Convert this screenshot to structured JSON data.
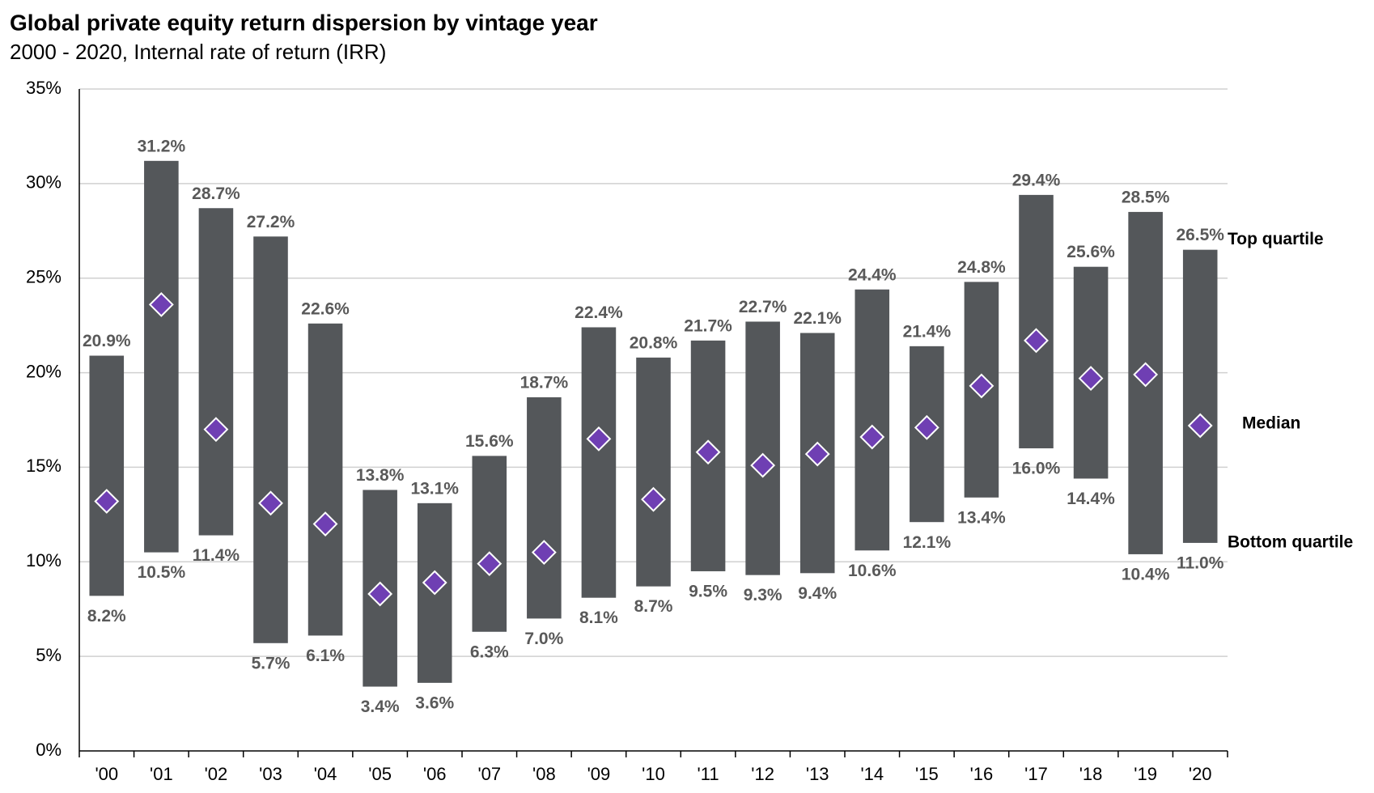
{
  "chart_data": {
    "type": "range-bar",
    "title": "Global private equity return dispersion by vintage year",
    "subtitle": "2000 - 2020, Internal rate of return (IRR)",
    "categories": [
      "'00",
      "'01",
      "'02",
      "'03",
      "'04",
      "'05",
      "'06",
      "'07",
      "'08",
      "'09",
      "'10",
      "'11",
      "'12",
      "'13",
      "'14",
      "'15",
      "'16",
      "'17",
      "'18",
      "'19",
      "'20"
    ],
    "series": [
      {
        "name": "Top quartile",
        "color": "#54575a",
        "values": [
          20.9,
          31.2,
          28.7,
          27.2,
          22.6,
          13.8,
          13.1,
          15.6,
          18.7,
          22.4,
          20.8,
          21.7,
          22.7,
          22.1,
          24.4,
          21.4,
          24.8,
          29.4,
          25.6,
          28.5,
          26.5
        ],
        "value_labels": [
          "20.9%",
          "31.2%",
          "28.7%",
          "27.2%",
          "22.6%",
          "13.8%",
          "13.1%",
          "15.6%",
          "18.7%",
          "22.4%",
          "20.8%",
          "21.7%",
          "22.7%",
          "22.1%",
          "24.4%",
          "21.4%",
          "24.8%",
          "29.4%",
          "25.6%",
          "28.5%",
          "26.5%"
        ]
      },
      {
        "name": "Bottom quartile",
        "color": "#54575a",
        "values": [
          8.2,
          10.5,
          11.4,
          5.7,
          6.1,
          3.4,
          3.6,
          6.3,
          7.0,
          8.1,
          8.7,
          9.5,
          9.3,
          9.4,
          10.6,
          12.1,
          13.4,
          16.0,
          14.4,
          10.4,
          11.0
        ],
        "value_labels": [
          "8.2%",
          "10.5%",
          "11.4%",
          "5.7%",
          "6.1%",
          "3.4%",
          "3.6%",
          "6.3%",
          "7.0%",
          "8.1%",
          "8.7%",
          "9.5%",
          "9.3%",
          "9.4%",
          "10.6%",
          "12.1%",
          "13.4%",
          "16.0%",
          "14.4%",
          "10.4%",
          "11.0%"
        ]
      },
      {
        "name": "Median",
        "color": "#6f3fb3",
        "values": [
          13.2,
          23.6,
          17.0,
          13.1,
          12.0,
          8.3,
          8.9,
          9.9,
          10.5,
          16.5,
          13.3,
          15.8,
          15.1,
          15.7,
          16.6,
          17.1,
          19.3,
          21.7,
          19.7,
          19.9,
          17.2
        ]
      }
    ],
    "ylim": [
      0,
      35
    ],
    "yticks": [
      {
        "value": 0,
        "label": "0%"
      },
      {
        "value": 5,
        "label": "5%"
      },
      {
        "value": 10,
        "label": "10%"
      },
      {
        "value": 15,
        "label": "15%"
      },
      {
        "value": 20,
        "label": "20%"
      },
      {
        "value": 25,
        "label": "25%"
      },
      {
        "value": 30,
        "label": "30%"
      },
      {
        "value": 35,
        "label": "35%"
      }
    ],
    "grid": true
  }
}
